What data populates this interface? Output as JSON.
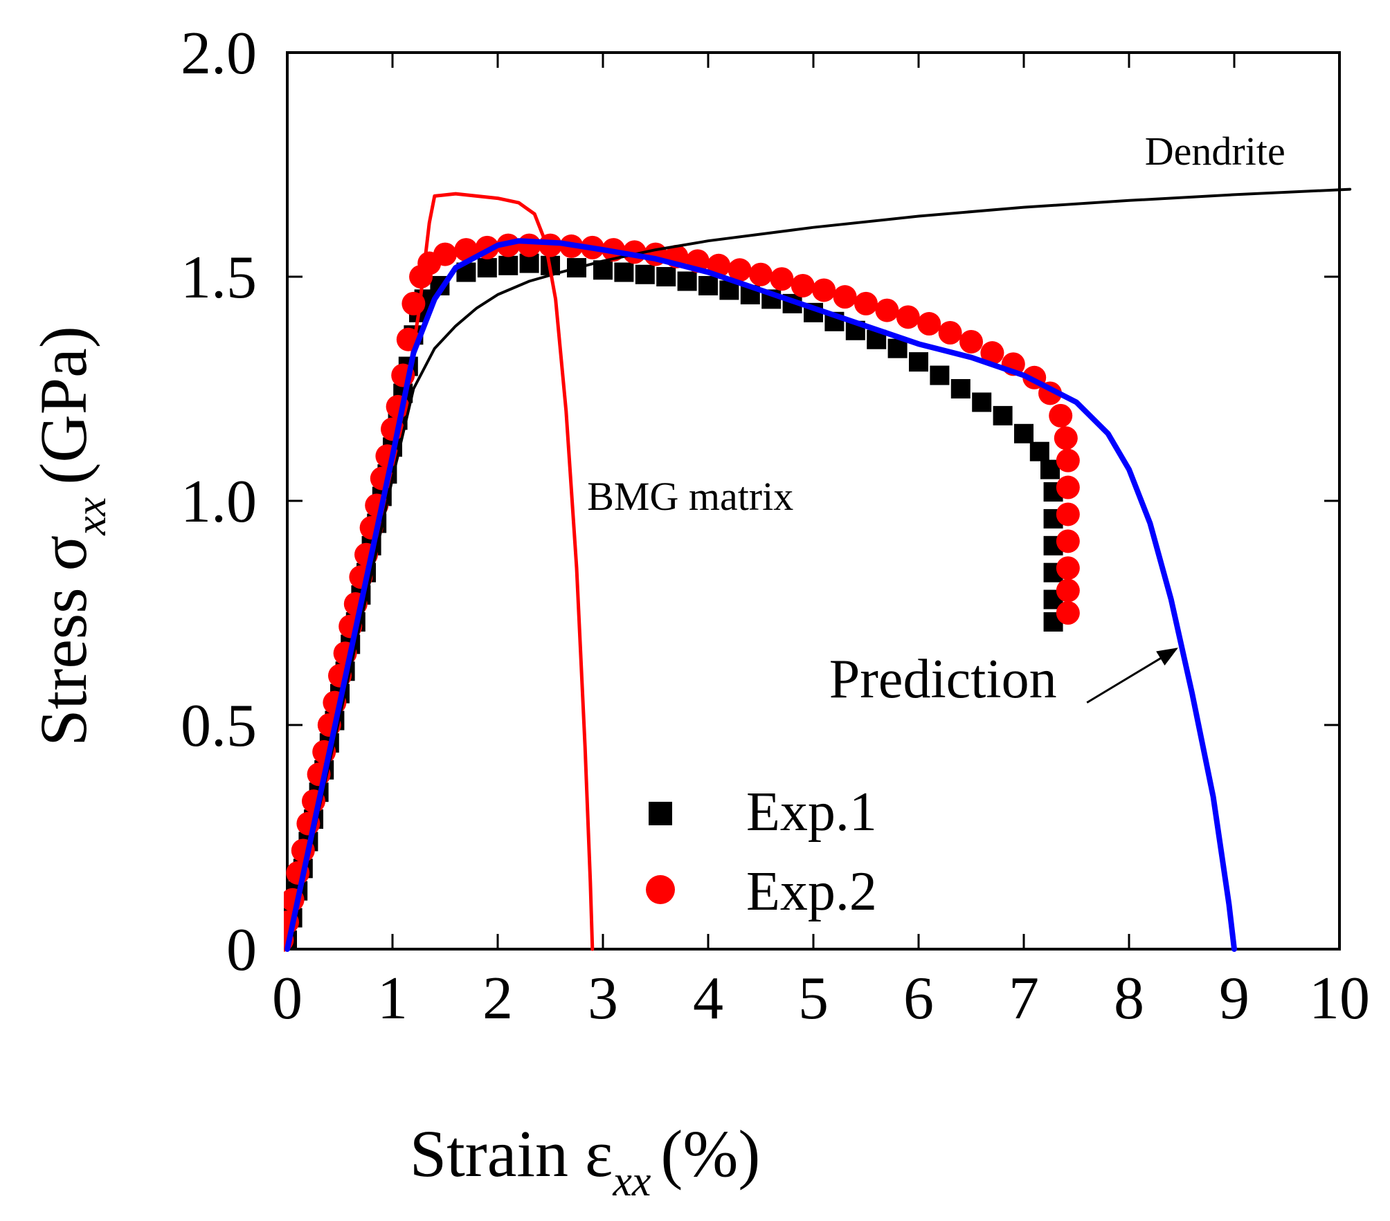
{
  "chart_data": {
    "type": "line",
    "title": "",
    "xlabel": {
      "main": "Strain ε",
      "sub": "xx",
      "unit": "(%)"
    },
    "ylabel": {
      "main": "Stress σ",
      "sub": "xx",
      "unit": "(GPa)"
    },
    "xlim": [
      0,
      10
    ],
    "ylim": [
      0,
      2.0
    ],
    "x_ticks": [
      0,
      1,
      2,
      3,
      4,
      5,
      6,
      7,
      8,
      9,
      10
    ],
    "x_tick_labels": [
      "0",
      "1",
      "2",
      "3",
      "4",
      "5",
      "6",
      "7",
      "8",
      "9",
      "10"
    ],
    "y_ticks": [
      0,
      0.5,
      1.0,
      1.5,
      2.0
    ],
    "y_tick_labels": [
      "0",
      "0.5",
      "1.0",
      "1.5",
      "2.0"
    ],
    "grid": false,
    "legend": {
      "placement": "bottom-center",
      "entries": [
        {
          "label": "Exp.1",
          "marker": "square",
          "color": "#000000"
        },
        {
          "label": "Exp.2",
          "marker": "circle",
          "color": "#ff0000"
        }
      ]
    },
    "series": [
      {
        "name": "Dendrite",
        "style": "line",
        "color": "#000000",
        "points": [
          [
            0,
            0
          ],
          [
            0.5,
            0.52
          ],
          [
            1.0,
            1.05
          ],
          [
            1.2,
            1.25
          ],
          [
            1.4,
            1.34
          ],
          [
            1.6,
            1.39
          ],
          [
            1.8,
            1.43
          ],
          [
            2.0,
            1.46
          ],
          [
            2.3,
            1.49
          ],
          [
            2.6,
            1.51
          ],
          [
            3.0,
            1.535
          ],
          [
            3.5,
            1.56
          ],
          [
            4.0,
            1.58
          ],
          [
            5.0,
            1.61
          ],
          [
            6.0,
            1.635
          ],
          [
            7.0,
            1.655
          ],
          [
            8.0,
            1.67
          ],
          [
            9.0,
            1.683
          ],
          [
            10.1,
            1.695
          ]
        ]
      },
      {
        "name": "BMG matrix",
        "style": "line",
        "color": "#ff0000",
        "points": [
          [
            0,
            0
          ],
          [
            0.4,
            0.44
          ],
          [
            0.8,
            0.88
          ],
          [
            1.1,
            1.2
          ],
          [
            1.25,
            1.42
          ],
          [
            1.35,
            1.62
          ],
          [
            1.4,
            1.68
          ],
          [
            1.6,
            1.685
          ],
          [
            2.0,
            1.675
          ],
          [
            2.2,
            1.665
          ],
          [
            2.35,
            1.64
          ],
          [
            2.45,
            1.58
          ],
          [
            2.55,
            1.45
          ],
          [
            2.65,
            1.2
          ],
          [
            2.75,
            0.85
          ],
          [
            2.83,
            0.45
          ],
          [
            2.88,
            0.15
          ],
          [
            2.9,
            0
          ]
        ]
      },
      {
        "name": "Prediction",
        "style": "line",
        "color": "#0000ff",
        "points": [
          [
            0,
            0
          ],
          [
            0.5,
            0.55
          ],
          [
            1.0,
            1.1
          ],
          [
            1.2,
            1.33
          ],
          [
            1.4,
            1.45
          ],
          [
            1.6,
            1.52
          ],
          [
            2.0,
            1.57
          ],
          [
            2.2,
            1.58
          ],
          [
            2.6,
            1.575
          ],
          [
            3.0,
            1.56
          ],
          [
            3.5,
            1.54
          ],
          [
            4.0,
            1.51
          ],
          [
            4.5,
            1.47
          ],
          [
            5.0,
            1.43
          ],
          [
            5.5,
            1.39
          ],
          [
            6.0,
            1.35
          ],
          [
            6.5,
            1.32
          ],
          [
            7.0,
            1.28
          ],
          [
            7.5,
            1.22
          ],
          [
            7.8,
            1.15
          ],
          [
            8.0,
            1.07
          ],
          [
            8.2,
            0.95
          ],
          [
            8.4,
            0.78
          ],
          [
            8.6,
            0.57
          ],
          [
            8.8,
            0.34
          ],
          [
            8.95,
            0.1
          ],
          [
            9.0,
            0
          ]
        ]
      },
      {
        "name": "Exp.1",
        "style": "marker",
        "marker": "square",
        "color": "#000000",
        "points": [
          [
            0.0,
            0.02
          ],
          [
            0.05,
            0.07
          ],
          [
            0.1,
            0.13
          ],
          [
            0.15,
            0.18
          ],
          [
            0.2,
            0.24
          ],
          [
            0.25,
            0.29
          ],
          [
            0.3,
            0.35
          ],
          [
            0.35,
            0.4
          ],
          [
            0.4,
            0.46
          ],
          [
            0.45,
            0.51
          ],
          [
            0.5,
            0.57
          ],
          [
            0.55,
            0.62
          ],
          [
            0.6,
            0.68
          ],
          [
            0.65,
            0.73
          ],
          [
            0.7,
            0.79
          ],
          [
            0.75,
            0.84
          ],
          [
            0.8,
            0.9
          ],
          [
            0.85,
            0.95
          ],
          [
            0.9,
            1.01
          ],
          [
            0.95,
            1.06
          ],
          [
            1.0,
            1.12
          ],
          [
            1.05,
            1.18
          ],
          [
            1.1,
            1.24
          ],
          [
            1.15,
            1.3
          ],
          [
            1.2,
            1.37
          ],
          [
            1.25,
            1.42
          ],
          [
            1.3,
            1.45
          ],
          [
            1.45,
            1.48
          ],
          [
            1.7,
            1.51
          ],
          [
            1.9,
            1.52
          ],
          [
            2.1,
            1.525
          ],
          [
            2.3,
            1.53
          ],
          [
            2.5,
            1.525
          ],
          [
            2.75,
            1.52
          ],
          [
            3.0,
            1.515
          ],
          [
            3.2,
            1.51
          ],
          [
            3.4,
            1.505
          ],
          [
            3.6,
            1.5
          ],
          [
            3.8,
            1.49
          ],
          [
            4.0,
            1.48
          ],
          [
            4.2,
            1.47
          ],
          [
            4.4,
            1.46
          ],
          [
            4.6,
            1.45
          ],
          [
            4.8,
            1.44
          ],
          [
            5.0,
            1.42
          ],
          [
            5.2,
            1.4
          ],
          [
            5.4,
            1.38
          ],
          [
            5.6,
            1.36
          ],
          [
            5.8,
            1.34
          ],
          [
            6.0,
            1.31
          ],
          [
            6.2,
            1.28
          ],
          [
            6.4,
            1.25
          ],
          [
            6.6,
            1.22
          ],
          [
            6.8,
            1.19
          ],
          [
            7.0,
            1.15
          ],
          [
            7.15,
            1.11
          ],
          [
            7.25,
            1.07
          ],
          [
            7.28,
            1.02
          ],
          [
            7.28,
            0.96
          ],
          [
            7.28,
            0.9
          ],
          [
            7.28,
            0.84
          ],
          [
            7.28,
            0.78
          ],
          [
            7.28,
            0.73
          ]
        ]
      },
      {
        "name": "Exp.2",
        "style": "marker",
        "marker": "circle",
        "color": "#ff0000",
        "points": [
          [
            -0.05,
            0.02
          ],
          [
            0.0,
            0.06
          ],
          [
            0.05,
            0.11
          ],
          [
            0.1,
            0.17
          ],
          [
            0.15,
            0.22
          ],
          [
            0.2,
            0.28
          ],
          [
            0.25,
            0.33
          ],
          [
            0.3,
            0.39
          ],
          [
            0.35,
            0.44
          ],
          [
            0.4,
            0.5
          ],
          [
            0.45,
            0.55
          ],
          [
            0.5,
            0.61
          ],
          [
            0.55,
            0.66
          ],
          [
            0.6,
            0.72
          ],
          [
            0.65,
            0.77
          ],
          [
            0.7,
            0.83
          ],
          [
            0.75,
            0.88
          ],
          [
            0.8,
            0.94
          ],
          [
            0.85,
            0.99
          ],
          [
            0.9,
            1.05
          ],
          [
            0.95,
            1.1
          ],
          [
            1.0,
            1.16
          ],
          [
            1.05,
            1.21
          ],
          [
            1.1,
            1.28
          ],
          [
            1.15,
            1.36
          ],
          [
            1.2,
            1.44
          ],
          [
            1.27,
            1.5
          ],
          [
            1.35,
            1.53
          ],
          [
            1.5,
            1.55
          ],
          [
            1.7,
            1.56
          ],
          [
            1.9,
            1.565
          ],
          [
            2.1,
            1.57
          ],
          [
            2.3,
            1.57
          ],
          [
            2.5,
            1.57
          ],
          [
            2.7,
            1.568
          ],
          [
            2.9,
            1.565
          ],
          [
            3.1,
            1.56
          ],
          [
            3.3,
            1.555
          ],
          [
            3.5,
            1.55
          ],
          [
            3.7,
            1.545
          ],
          [
            3.9,
            1.535
          ],
          [
            4.1,
            1.525
          ],
          [
            4.3,
            1.515
          ],
          [
            4.5,
            1.505
          ],
          [
            4.7,
            1.495
          ],
          [
            4.9,
            1.48
          ],
          [
            5.1,
            1.47
          ],
          [
            5.3,
            1.455
          ],
          [
            5.5,
            1.44
          ],
          [
            5.7,
            1.425
          ],
          [
            5.9,
            1.41
          ],
          [
            6.1,
            1.395
          ],
          [
            6.3,
            1.375
          ],
          [
            6.5,
            1.355
          ],
          [
            6.7,
            1.33
          ],
          [
            6.9,
            1.305
          ],
          [
            7.1,
            1.275
          ],
          [
            7.25,
            1.24
          ],
          [
            7.35,
            1.19
          ],
          [
            7.4,
            1.14
          ],
          [
            7.42,
            1.09
          ],
          [
            7.42,
            1.03
          ],
          [
            7.42,
            0.97
          ],
          [
            7.42,
            0.91
          ],
          [
            7.42,
            0.85
          ],
          [
            7.42,
            0.8
          ],
          [
            7.42,
            0.75
          ]
        ]
      }
    ],
    "annotations": [
      {
        "text": "Dendrite",
        "near_series": "Dendrite",
        "at": [
          8.15,
          1.75
        ],
        "size": "small"
      },
      {
        "text": "BMG matrix",
        "near_series": "BMG matrix",
        "at": [
          2.85,
          0.98
        ],
        "size": "small"
      },
      {
        "text": "Prediction",
        "near_series": "Prediction",
        "at": [
          5.2,
          0.05
        ],
        "size": "large",
        "arrow_from": [
          7.6,
          1.08
        ],
        "arrow_to": [
          8.5,
          1.34
        ]
      }
    ]
  }
}
